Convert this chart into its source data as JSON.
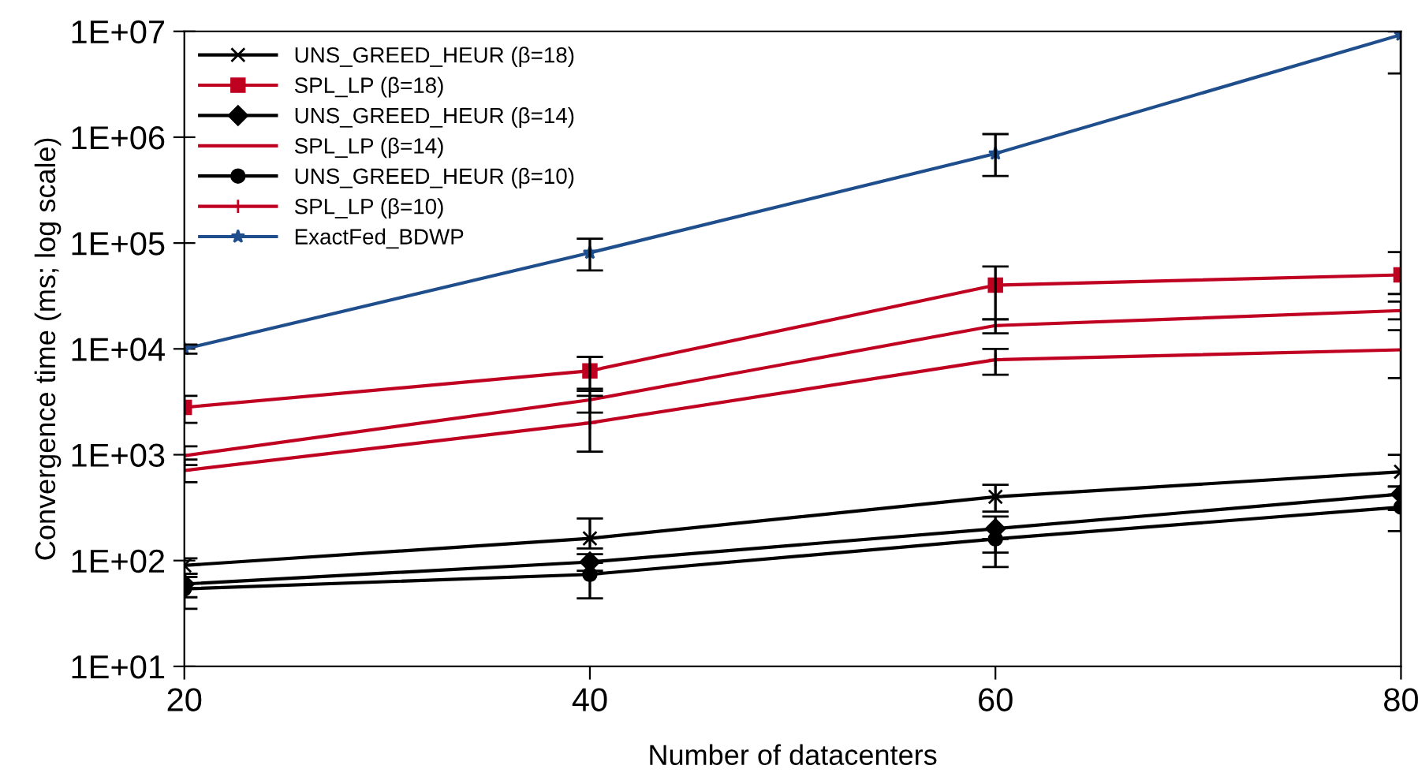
{
  "chart_data": {
    "type": "line",
    "xlabel": "Number of datacenters",
    "ylabel": "Convergence time (ms; log scale)",
    "log": "y",
    "grid": false,
    "legend": "top left",
    "line_style": "solid",
    "x": [
      20,
      40,
      60,
      80
    ],
    "xlim": [
      20,
      80
    ],
    "xticks": [
      20,
      40,
      60,
      80
    ],
    "ylim": [
      10,
      10000000
    ],
    "yticks": [
      {
        "value": 10,
        "label": "1E+01"
      },
      {
        "value": 100,
        "label": "1E+02"
      },
      {
        "value": 1000,
        "label": "1E+03"
      },
      {
        "value": 10000,
        "label": "1E+04"
      },
      {
        "value": 100000,
        "label": "1E+05"
      },
      {
        "value": 1000000,
        "label": "1E+06"
      },
      {
        "value": 10000000,
        "label": "1E+07"
      }
    ],
    "series": [
      {
        "name": "UNS_GREED_HEUR (β=18)",
        "color": "#000000",
        "marker": "cross",
        "values": [
          90,
          162,
          400,
          690
        ],
        "errors": [
          [
            75,
            105
          ],
          [
            130,
            250
          ],
          [
            290,
            520
          ],
          [
            500,
            1000
          ]
        ]
      },
      {
        "name": "SPL_LP (β=18)",
        "color": "#c00020",
        "marker": "square",
        "values": [
          2800,
          6200,
          40000,
          50000
        ],
        "errors": [
          [
            2000,
            3600
          ],
          [
            4000,
            8400
          ],
          [
            19000,
            60000
          ],
          [
            33000,
            82000
          ]
        ]
      },
      {
        "name": "UNS_GREED_HEUR (β=14)",
        "color": "#000000",
        "marker": "diamond",
        "values": [
          60,
          97,
          200,
          425
        ],
        "errors": [
          [
            45,
            75
          ],
          [
            80,
            115
          ],
          [
            119,
            261
          ],
          [
            300,
            500
          ]
        ]
      },
      {
        "name": "SPL_LP (β=14)",
        "color": "#c00020",
        "marker": "none",
        "values": [
          980,
          3300,
          16600,
          23000
        ],
        "errors": [
          [
            800,
            1200
          ],
          [
            2500,
            4200
          ],
          [
            14000,
            19000
          ],
          [
            19000,
            28000
          ]
        ]
      },
      {
        "name": "UNS_GREED_HEUR (β=10)",
        "color": "#000000",
        "marker": "circle",
        "values": [
          54,
          74,
          160,
          320
        ],
        "errors": [
          [
            35,
            70
          ],
          [
            44,
            95
          ],
          [
            87,
            160
          ],
          [
            190,
            420
          ]
        ]
      },
      {
        "name": "SPL_LP (β=10)",
        "color": "#c00020",
        "marker": "plus",
        "values": [
          710,
          2000,
          7900,
          9800
        ],
        "errors": [
          [
            550,
            900
          ],
          [
            1070,
            3600
          ],
          [
            5700,
            10000
          ],
          [
            5300,
            15000
          ]
        ]
      },
      {
        "name": "ExactFed_BDWP",
        "color": "#1f4e8c",
        "marker": "star",
        "values": [
          10000,
          81000,
          700000,
          9300000
        ],
        "errors": [
          [
            9000,
            11000
          ],
          [
            55000,
            110000
          ],
          [
            430000,
            1070000
          ],
          [
            4000000,
            10000000
          ]
        ]
      }
    ]
  }
}
